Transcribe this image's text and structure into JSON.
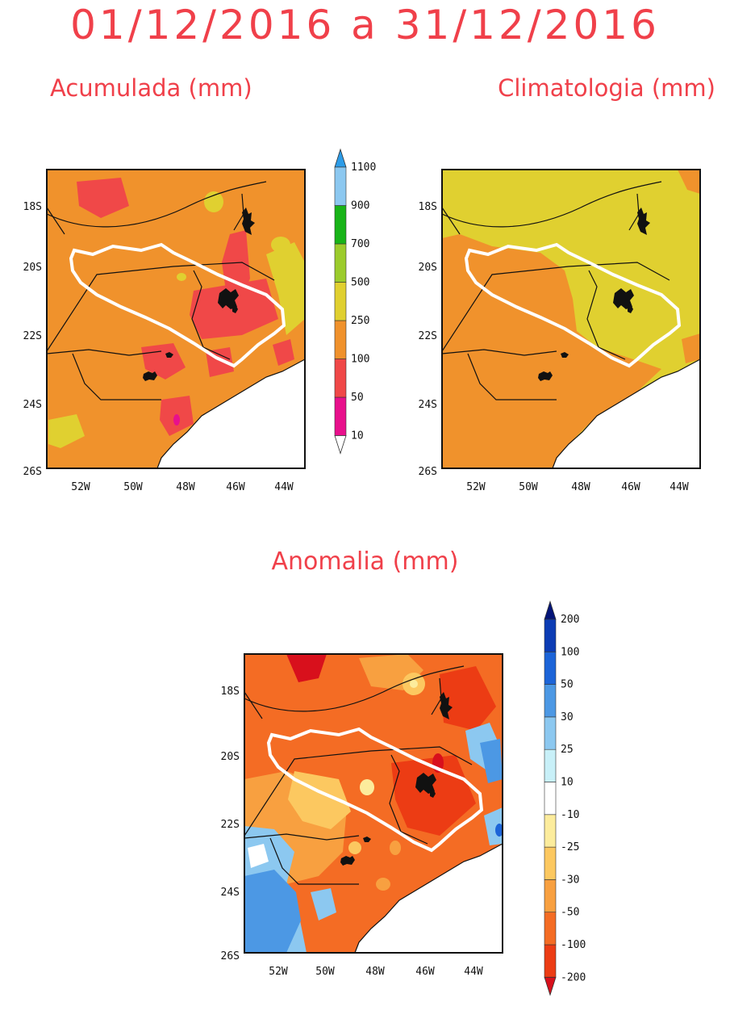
{
  "title": "01/12/2016 a 31/12/2016",
  "panels": [
    {
      "id": "acumulada",
      "title": "Acumulada (mm)"
    },
    {
      "id": "climatologia",
      "title": "Climatologia (mm)"
    },
    {
      "id": "anomalia",
      "title": "Anomalia (mm)"
    }
  ],
  "axes": {
    "lat_labels": [
      "18S",
      "20S",
      "22S",
      "24S",
      "26S"
    ],
    "lon_labels": [
      "52W",
      "50W",
      "48W",
      "46W",
      "44W"
    ]
  },
  "colorbar_precip": {
    "labels": [
      "10",
      "50",
      "100",
      "250",
      "500",
      "700",
      "900",
      "1100"
    ],
    "colors": [
      "#ffffff",
      "#e8108c",
      "#f04848",
      "#f0922c",
      "#e0d030",
      "#9ccc2c",
      "#18b418",
      "#8cc8f0",
      "#2c9ce8"
    ]
  },
  "colorbar_anom": {
    "labels": [
      "-200",
      "-100",
      "-50",
      "-30",
      "-25",
      "-10",
      "10",
      "25",
      "30",
      "50",
      "100",
      "200"
    ],
    "colors": [
      "#d8101c",
      "#ec3c14",
      "#f46c24",
      "#f8a040",
      "#fcc860",
      "#fcec9c",
      "#ffffff",
      "#c8f0f8",
      "#8cc8f0",
      "#4c98e4",
      "#1c64d8",
      "#0c3cb4",
      "#041478"
    ]
  }
}
